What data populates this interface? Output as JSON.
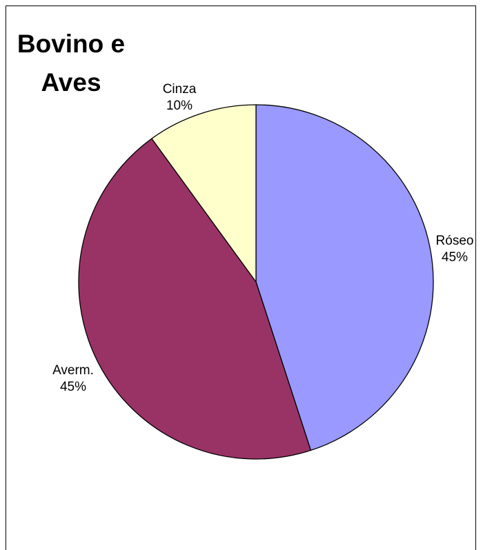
{
  "chart_data": {
    "type": "pie",
    "title": "Bovino e Aves",
    "title_lines": [
      "Bovino e",
      "Aves"
    ],
    "categories": [
      "Róseo",
      "Averm.",
      "Cinza"
    ],
    "values": [
      45,
      45,
      10
    ],
    "percent_labels": [
      "45%",
      "45%",
      "10%"
    ],
    "colors": [
      "#9999FF",
      "#993366",
      "#FFFFCC"
    ],
    "start_position": "12 o'clock, clockwise",
    "legend": "none",
    "data_labels": "category name and percentage outside each slice"
  }
}
